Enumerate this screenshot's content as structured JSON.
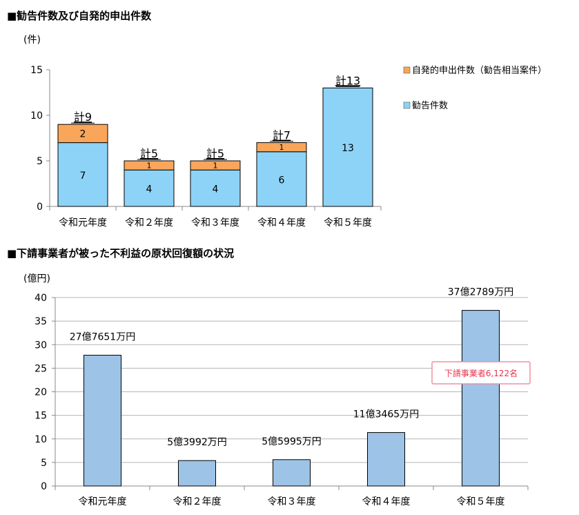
{
  "chart_data": [
    {
      "type": "bar",
      "stacked": true,
      "title": "■勧告件数及び自発的申出件数",
      "ylabel": "(件)",
      "categories": [
        "令和元年度",
        "令和２年度",
        "令和３年度",
        "令和４年度",
        "令和５年度"
      ],
      "series": [
        {
          "name": "勧告件数",
          "values": [
            7,
            4,
            4,
            6,
            13
          ],
          "color": "#8dd3f7"
        },
        {
          "name": "自発的申出件数（勧告相当案件）",
          "values": [
            2,
            1,
            1,
            1,
            0
          ],
          "color": "#f9a65a"
        }
      ],
      "segment_labels": {
        "勧告件数": [
          "7",
          "4",
          "4",
          "6",
          "13"
        ],
        "自発的申出件数（勧告相当案件）": [
          "2",
          "1",
          "1",
          "1",
          ""
        ]
      },
      "totals": [
        "計9",
        "計5",
        "計5",
        "計7",
        "計13"
      ],
      "ylim": [
        0,
        15
      ],
      "yticks": [
        0,
        5,
        10,
        15
      ],
      "grid": false,
      "legend": "right"
    },
    {
      "type": "bar",
      "title": "■下請事業者が被った不利益の原状回復額の状況",
      "ylabel": "(億円)",
      "categories": [
        "令和元年度",
        "令和２年度",
        "令和３年度",
        "令和４年度",
        "令和５年度"
      ],
      "values": [
        27.7651,
        5.3992,
        5.5995,
        11.3465,
        37.2789
      ],
      "data_labels": [
        "27億7651万円",
        "5億3992万円",
        "5億5995万円",
        "11億3465万円",
        "37億2789万円"
      ],
      "color": "#9dc3e6",
      "ylim": [
        0,
        40
      ],
      "yticks": [
        0,
        5,
        10,
        15,
        20,
        25,
        30,
        35,
        40
      ],
      "grid": true,
      "annotation": "下請事業者6,122名"
    }
  ]
}
